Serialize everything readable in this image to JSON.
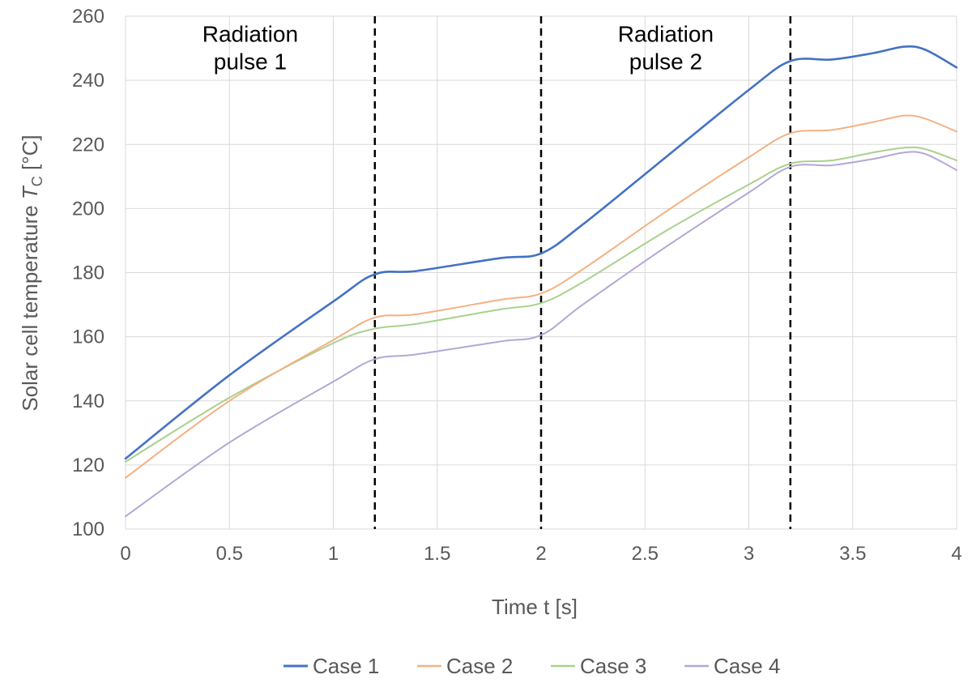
{
  "chart_data": {
    "type": "line",
    "title": "",
    "xlabel": "Time t [s]",
    "ylabel": {
      "main": "Solar cell temperature ",
      "symbol": "T",
      "subscript": "C",
      "unit": " [°C]"
    },
    "xlim": [
      0,
      4
    ],
    "ylim": [
      100,
      260
    ],
    "x_ticks": [
      0,
      0.5,
      1,
      1.5,
      2,
      2.5,
      3,
      3.5,
      4
    ],
    "x_tick_labels": [
      "0",
      "0.5",
      "1",
      "1.5",
      "2",
      "2.5",
      "3",
      "3.5",
      "4"
    ],
    "y_ticks": [
      100,
      120,
      140,
      160,
      180,
      200,
      220,
      240,
      260
    ],
    "y_tick_labels": [
      "100",
      "120",
      "140",
      "160",
      "180",
      "200",
      "220",
      "240",
      "260"
    ],
    "grid": true,
    "legend_position": "bottom",
    "vertical_markers": [
      1.2,
      2,
      3.2
    ],
    "annotations": [
      {
        "lines": [
          "Radiation",
          "pulse 1"
        ],
        "x": 0.6,
        "y": 252
      },
      {
        "lines": [
          "Radiation",
          "pulse 2"
        ],
        "x": 2.6,
        "y": 252
      }
    ],
    "series": [
      {
        "name": "Case 1",
        "color": "#4472C4",
        "x": [
          0,
          0.5,
          1,
          1.2,
          1.4,
          1.8,
          2,
          2.2,
          2.6,
          3,
          3.2,
          3.4,
          3.6,
          3.75,
          3.85,
          4
        ],
        "y": [
          122,
          148,
          171,
          179.5,
          180.5,
          184.5,
          186,
          195,
          216,
          237,
          246,
          246.5,
          248.5,
          250.5,
          249.5,
          244
        ]
      },
      {
        "name": "Case 2",
        "color": "#F4B183",
        "x": [
          0,
          0.5,
          1,
          1.2,
          1.4,
          1.8,
          2,
          2.2,
          2.6,
          3,
          3.2,
          3.4,
          3.6,
          3.75,
          3.85,
          4
        ],
        "y": [
          116,
          140,
          159,
          166,
          167,
          171.5,
          173.5,
          181,
          199,
          216,
          223.5,
          224.5,
          227,
          229,
          228,
          224
        ]
      },
      {
        "name": "Case 3",
        "color": "#A9D18E",
        "x": [
          0,
          0.5,
          1,
          1.2,
          1.4,
          1.8,
          2,
          2.2,
          2.6,
          3,
          3.2,
          3.4,
          3.6,
          3.75,
          3.85,
          4
        ],
        "y": [
          121,
          141,
          158,
          162.5,
          164,
          168.5,
          170.5,
          177,
          193,
          207.5,
          214,
          215,
          217.5,
          219,
          218.5,
          215
        ]
      },
      {
        "name": "Case 4",
        "color": "#B4A7D6",
        "x": [
          0,
          0.5,
          1,
          1.2,
          1.4,
          1.8,
          2,
          2.2,
          2.6,
          3,
          3.2,
          3.4,
          3.6,
          3.75,
          3.85,
          4
        ],
        "y": [
          104,
          127,
          146,
          153,
          154.5,
          158.5,
          160.5,
          170,
          188,
          205,
          213,
          213.5,
          215.5,
          217.5,
          217,
          212
        ]
      }
    ]
  }
}
